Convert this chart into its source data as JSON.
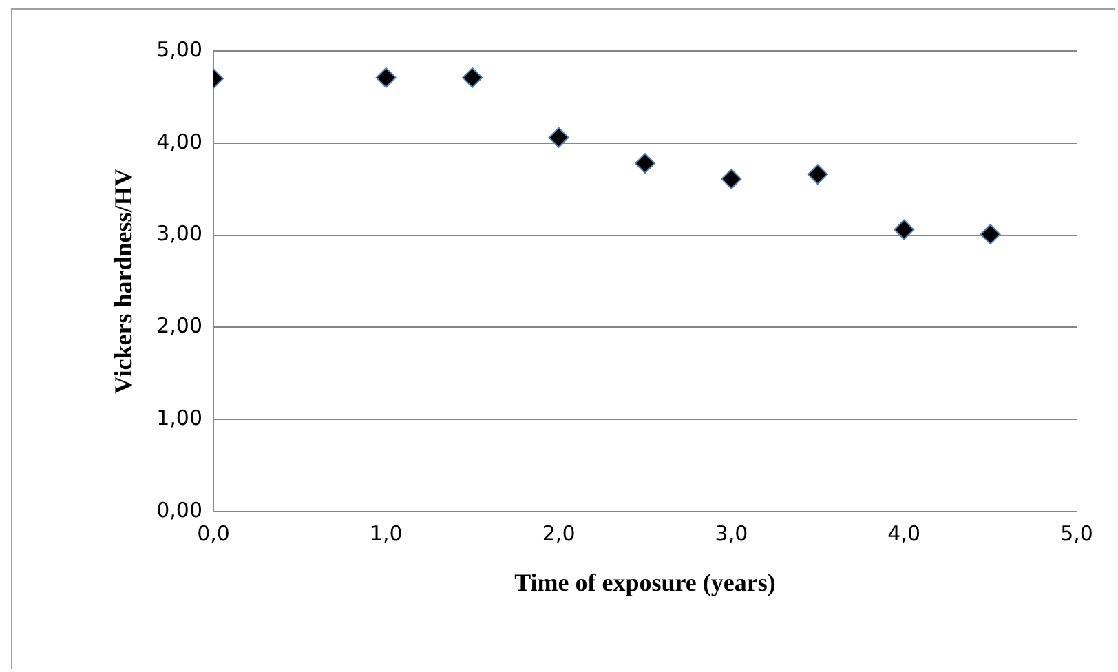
{
  "chart_data": {
    "type": "scatter",
    "xlabel": "Time of exposure (years)",
    "ylabel": "Vickers hardness/HV",
    "x": [
      0,
      1,
      1.5,
      2,
      2.5,
      3,
      3.5,
      4,
      4.5
    ],
    "series": [
      {
        "color": "#000000",
        "values": [
          4.7,
          4.71,
          4.71,
          4.06,
          3.78,
          3.61,
          3.66,
          3.06,
          3.01
        ]
      }
    ],
    "xlim": [
      0,
      5
    ],
    "xticks": [
      {
        "value": 0,
        "label": "0,0"
      },
      {
        "value": 1,
        "label": "1,0"
      },
      {
        "value": 2,
        "label": "2,0"
      },
      {
        "value": 3,
        "label": "3,0"
      },
      {
        "value": 4,
        "label": "4,0"
      },
      {
        "value": 5,
        "label": "5,0"
      }
    ],
    "ylim": [
      0,
      5
    ],
    "yticks": [
      {
        "value": 0,
        "label": "0,00"
      },
      {
        "value": 1,
        "label": "1,00"
      },
      {
        "value": 2,
        "label": "2,00"
      },
      {
        "value": 3,
        "label": "3,00"
      },
      {
        "value": 4,
        "label": "4,00"
      },
      {
        "value": 5,
        "label": "5,00"
      }
    ],
    "grid": "y",
    "marker": "diamond",
    "legend": false
  }
}
